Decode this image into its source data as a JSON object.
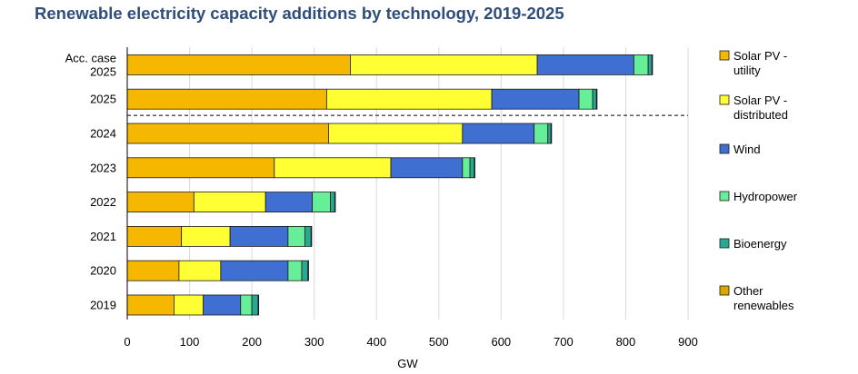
{
  "chart_data": {
    "type": "bar",
    "orientation": "horizontal",
    "stacked": true,
    "title": "Renewable electricity capacity additions by technology, 2019-2025",
    "xlabel": "GW",
    "ylabel": "",
    "xlim": [
      0,
      900
    ],
    "xticks": [
      0,
      100,
      200,
      300,
      400,
      500,
      600,
      700,
      800,
      900
    ],
    "grid": "vertical",
    "legend_position": "right",
    "categories": [
      [
        "Acc. case",
        "2025"
      ],
      [
        "2025"
      ],
      [
        "2024"
      ],
      [
        "2023"
      ],
      [
        "2022"
      ],
      [
        "2021"
      ],
      [
        "2020"
      ],
      [
        "2019"
      ]
    ],
    "separator_after_category": 1,
    "series": [
      {
        "name": [
          "Solar PV -",
          "utility"
        ],
        "color": "#f5b700",
        "values": [
          358,
          320,
          323,
          236,
          107,
          87,
          83,
          75
        ]
      },
      {
        "name": [
          "Solar PV -",
          "distributed"
        ],
        "color": "#ffff33",
        "values": [
          300,
          265,
          215,
          187,
          115,
          78,
          67,
          47
        ]
      },
      {
        "name": [
          "Wind"
        ],
        "color": "#3f6fd1",
        "values": [
          155,
          140,
          115,
          115,
          75,
          93,
          108,
          60
        ]
      },
      {
        "name": [
          "Hydropower"
        ],
        "color": "#66ee99",
        "values": [
          23,
          22,
          22,
          12,
          29,
          27,
          22,
          18
        ]
      },
      {
        "name": [
          "Bioenergy"
        ],
        "color": "#2aa893",
        "values": [
          6,
          6,
          5,
          7,
          7,
          10,
          10,
          10
        ]
      },
      {
        "name": [
          "Other",
          "renewables"
        ],
        "color": "#d9a800",
        "values": [
          1,
          1,
          1,
          1,
          1,
          1,
          1,
          1
        ]
      }
    ]
  }
}
